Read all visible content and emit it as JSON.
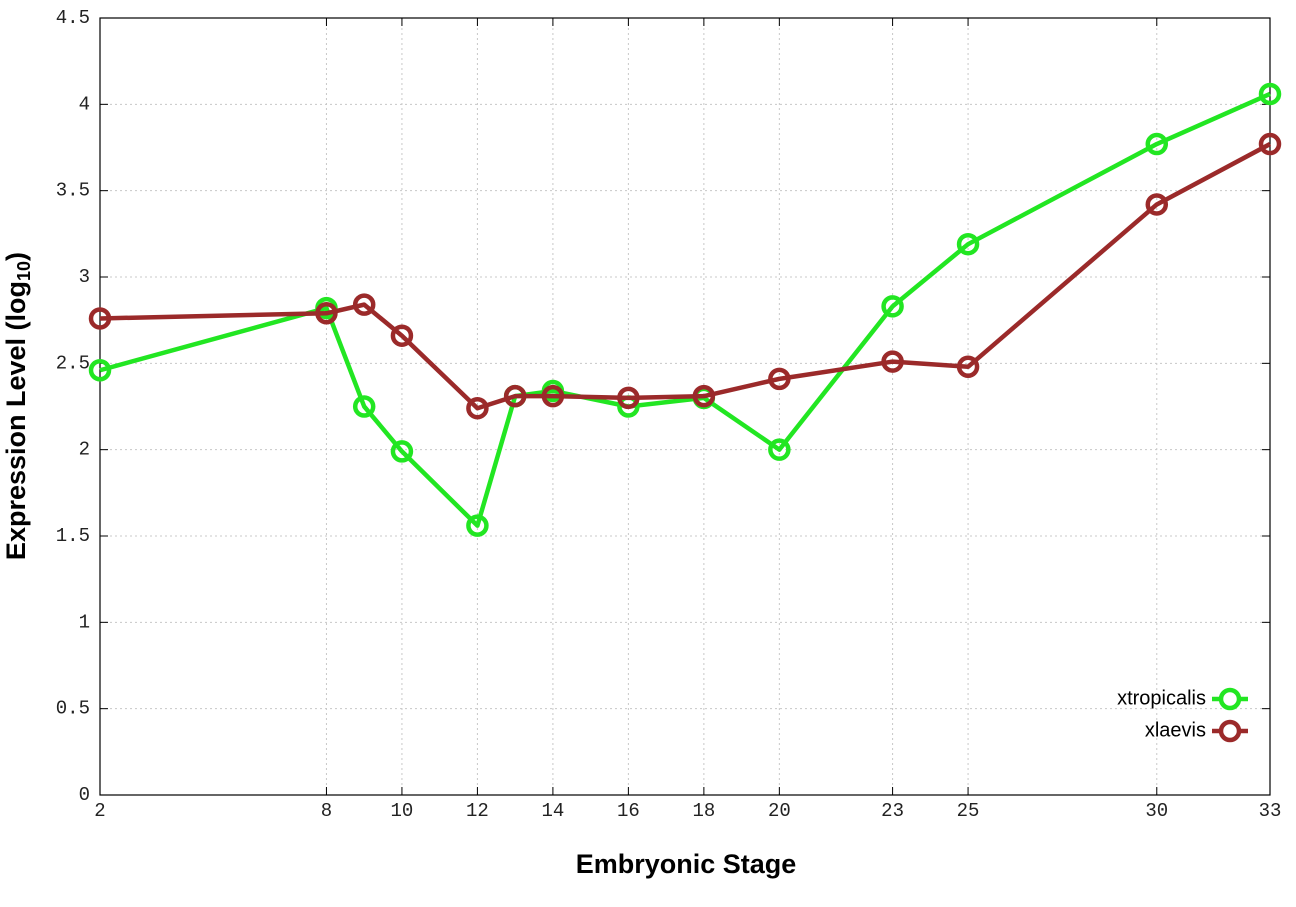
{
  "chart_data": {
    "type": "line",
    "x_label": "Embryonic Stage",
    "y_label": [
      "Expression Level (log",
      "10",
      ")"
    ],
    "x": [
      2,
      8,
      9,
      10,
      12,
      13,
      14,
      16,
      18,
      20,
      23,
      25,
      30,
      33
    ],
    "series": [
      {
        "name": "xtropicalis",
        "color": "#22e622",
        "values": [
          2.46,
          2.82,
          2.25,
          1.99,
          1.56,
          2.31,
          2.34,
          2.25,
          2.3,
          2.0,
          2.83,
          3.19,
          3.77,
          4.06
        ]
      },
      {
        "name": "xlaevis",
        "color": "#9b2a2a",
        "values": [
          2.76,
          2.79,
          2.84,
          2.66,
          2.24,
          2.31,
          2.31,
          2.3,
          2.31,
          2.41,
          2.51,
          2.48,
          3.42,
          3.77
        ]
      }
    ],
    "xlim": [
      2,
      33
    ],
    "xticks": [
      2,
      8,
      10,
      12,
      14,
      16,
      18,
      20,
      23,
      25,
      30,
      33
    ],
    "ylim": [
      0,
      4.5
    ],
    "yticks": [
      0,
      0.5,
      1,
      1.5,
      2,
      2.5,
      3,
      3.5,
      4,
      4.5
    ],
    "grid": true,
    "legend": "lower right"
  }
}
